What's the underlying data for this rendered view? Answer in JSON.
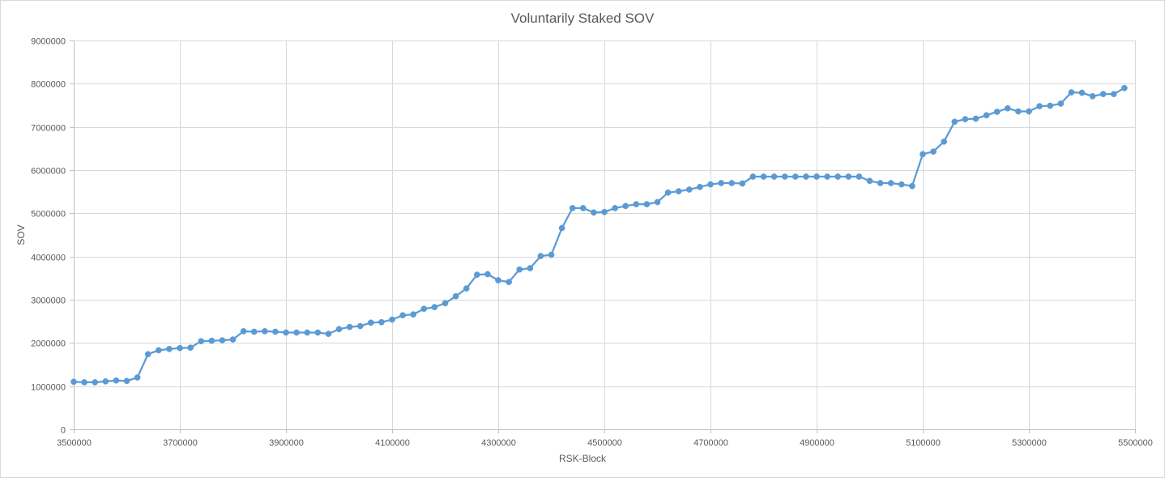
{
  "chart_data": {
    "type": "line",
    "title": "Voluntarily Staked SOV",
    "xlabel": "RSK-Block",
    "ylabel": "SOV",
    "xlim": [
      3500000,
      5500000
    ],
    "ylim": [
      0,
      9000000
    ],
    "x_ticks": [
      "3500000",
      "3700000",
      "3900000",
      "4100000",
      "4300000",
      "4500000",
      "4700000",
      "4900000",
      "5100000",
      "5300000",
      "5500000"
    ],
    "y_ticks": [
      "0",
      "1000000",
      "2000000",
      "3000000",
      "4000000",
      "5000000",
      "6000000",
      "7000000",
      "8000000",
      "9000000"
    ],
    "grid": true,
    "colors": {
      "series": "#5B9BD5",
      "grid": "#D9D9D9",
      "axis": "#BFBFBF",
      "text": "#595959"
    },
    "series": [
      {
        "name": "SOV",
        "x": [
          3500000,
          3520000,
          3540000,
          3560000,
          3580000,
          3600000,
          3620000,
          3640000,
          3660000,
          3680000,
          3700000,
          3720000,
          3740000,
          3760000,
          3780000,
          3800000,
          3820000,
          3840000,
          3860000,
          3880000,
          3900000,
          3920000,
          3940000,
          3960000,
          3980000,
          4000000,
          4020000,
          4040000,
          4060000,
          4080000,
          4100000,
          4120000,
          4140000,
          4160000,
          4180000,
          4200000,
          4220000,
          4240000,
          4260000,
          4280000,
          4300000,
          4320000,
          4340000,
          4360000,
          4380000,
          4400000,
          4420000,
          4440000,
          4460000,
          4480000,
          4500000,
          4520000,
          4540000,
          4560000,
          4580000,
          4600000,
          4620000,
          4640000,
          4660000,
          4680000,
          4700000,
          4720000,
          4740000,
          4760000,
          4780000,
          4800000,
          4820000,
          4840000,
          4860000,
          4880000,
          4900000,
          4920000,
          4940000,
          4960000,
          4980000,
          5000000,
          5020000,
          5040000,
          5060000,
          5080000,
          5100000,
          5120000,
          5140000,
          5160000,
          5180000,
          5200000,
          5220000,
          5240000,
          5260000,
          5280000,
          5300000,
          5320000,
          5340000,
          5360000,
          5380000,
          5400000,
          5420000,
          5440000,
          5460000,
          5480000
        ],
        "values": [
          1100000,
          1090000,
          1090000,
          1110000,
          1130000,
          1120000,
          1200000,
          1740000,
          1830000,
          1860000,
          1880000,
          1890000,
          2040000,
          2050000,
          2060000,
          2080000,
          2270000,
          2260000,
          2270000,
          2260000,
          2240000,
          2240000,
          2240000,
          2240000,
          2210000,
          2320000,
          2370000,
          2390000,
          2470000,
          2480000,
          2540000,
          2640000,
          2660000,
          2790000,
          2830000,
          2920000,
          3080000,
          3260000,
          3580000,
          3590000,
          3450000,
          3410000,
          3700000,
          3730000,
          4010000,
          4040000,
          4660000,
          5120000,
          5120000,
          5020000,
          5030000,
          5120000,
          5170000,
          5210000,
          5210000,
          5260000,
          5480000,
          5510000,
          5550000,
          5610000,
          5670000,
          5700000,
          5700000,
          5690000,
          5850000,
          5850000,
          5850000,
          5850000,
          5850000,
          5850000,
          5850000,
          5850000,
          5850000,
          5850000,
          5850000,
          5750000,
          5700000,
          5700000,
          5670000,
          5630000,
          6370000,
          6430000,
          6660000,
          7120000,
          7180000,
          7190000,
          7270000,
          7350000,
          7430000,
          7360000,
          7360000,
          7480000,
          7490000,
          7540000,
          7800000,
          7790000,
          7710000,
          7760000,
          7760000,
          7900000
        ]
      }
    ]
  }
}
